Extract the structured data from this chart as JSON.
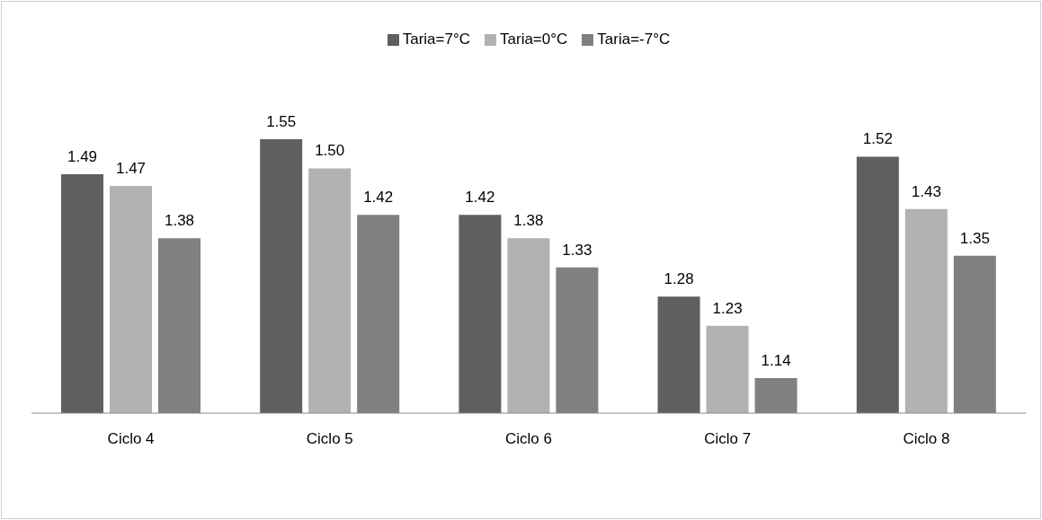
{
  "chart_data": {
    "type": "bar",
    "categories": [
      "Ciclo 4",
      "Ciclo 5",
      "Ciclo 6",
      "Ciclo 7",
      "Ciclo 8"
    ],
    "series": [
      {
        "name": "Taria=7°C",
        "color": "#5f5f5f",
        "values": [
          1.49,
          1.55,
          1.42,
          1.28,
          1.52
        ],
        "value_labels": [
          "1.49",
          "1.55",
          "1.42",
          "1.28",
          "1.52"
        ]
      },
      {
        "name": "Taria=0°C",
        "color": "#b2b2b2",
        "values": [
          1.47,
          1.5,
          1.38,
          1.23,
          1.43
        ],
        "value_labels": [
          "1.47",
          "1.50",
          "1.38",
          "1.23",
          "1.43"
        ]
      },
      {
        "name": "Taria=-7°C",
        "color": "#808080",
        "values": [
          1.38,
          1.42,
          1.33,
          1.14,
          1.35
        ],
        "value_labels": [
          "1.38",
          "1.42",
          "1.33",
          "1.14",
          "1.35"
        ]
      }
    ],
    "ylim": [
      1.08,
      1.55
    ],
    "legend": "top"
  }
}
